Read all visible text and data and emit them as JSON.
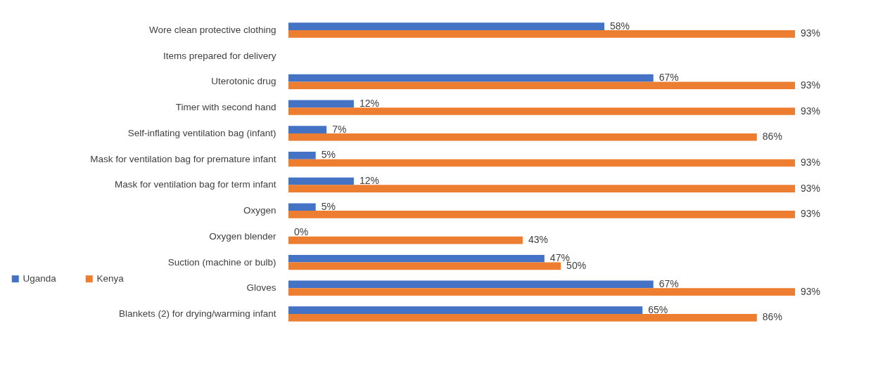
{
  "chart_data": {
    "type": "bar",
    "orientation": "horizontal",
    "legend": "left",
    "categories": [
      "Wore clean protective clothing",
      "Items prepared for delivery",
      "Uterotonic drug",
      "Timer with second hand",
      "Self-inflating ventilation bag (infant)",
      "Mask for ventilation bag  for premature infant",
      "Mask for ventilation bag  for term infant",
      "Oxygen",
      "Oxygen blender",
      "Suction (machine or bulb)",
      "Gloves",
      "Blankets (2) for drying/warming infant"
    ],
    "series": [
      {
        "name": "Uganda",
        "color": "#4472c4",
        "values": [
          58,
          null,
          67,
          12,
          7,
          5,
          12,
          5,
          0,
          47,
          67,
          65
        ],
        "value_labels": [
          "58%",
          null,
          "67%",
          "12%",
          "7%",
          "5%",
          "12%",
          "5%",
          "0%",
          "47%",
          "67%",
          "65%"
        ]
      },
      {
        "name": "Kenya",
        "color": "#ed7d31",
        "values": [
          93,
          null,
          93,
          93,
          86,
          93,
          93,
          93,
          43,
          50,
          93,
          86
        ],
        "value_labels": [
          "93%",
          null,
          "93%",
          "93%",
          "86%",
          "93%",
          "93%",
          "93%",
          "43%",
          "50%",
          "93%",
          "86%"
        ]
      }
    ]
  }
}
